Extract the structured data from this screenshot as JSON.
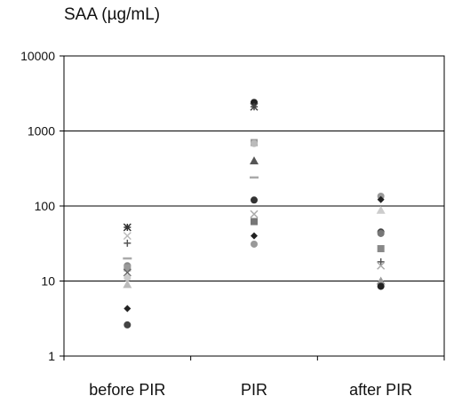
{
  "chart_data": {
    "type": "scatter",
    "title": "SAA (µg/mL)",
    "xlabel": "",
    "ylabel": "",
    "y_scale": "log",
    "ylim": [
      1,
      10000
    ],
    "yticks": [
      1,
      10,
      100,
      1000,
      10000
    ],
    "ytick_labels": [
      "1",
      "10",
      "100",
      "1000",
      "10000"
    ],
    "grid": "horizontal",
    "categories": [
      "before PIR",
      "PIR",
      "after PIR"
    ],
    "points": [
      {
        "category": "before PIR",
        "value": 52,
        "marker": "star",
        "color": "#333333"
      },
      {
        "category": "before PIR",
        "value": 40,
        "marker": "x",
        "color": "#bbbbbb"
      },
      {
        "category": "before PIR",
        "value": 32,
        "marker": "plus",
        "color": "#555555"
      },
      {
        "category": "before PIR",
        "value": 20,
        "marker": "dash",
        "color": "#aaaaaa"
      },
      {
        "category": "before PIR",
        "value": 16,
        "marker": "circle",
        "color": "#888888"
      },
      {
        "category": "before PIR",
        "value": 15,
        "marker": "square",
        "color": "#999999"
      },
      {
        "category": "before PIR",
        "value": 13,
        "marker": "x",
        "color": "#666666"
      },
      {
        "category": "before PIR",
        "value": 11,
        "marker": "circle",
        "color": "#cccccc"
      },
      {
        "category": "before PIR",
        "value": 9,
        "marker": "triangle",
        "color": "#bbbbbb"
      },
      {
        "category": "before PIR",
        "value": 4.3,
        "marker": "diamond",
        "color": "#222222"
      },
      {
        "category": "before PIR",
        "value": 2.6,
        "marker": "circle",
        "color": "#444444"
      },
      {
        "category": "PIR",
        "value": 2400,
        "marker": "circle",
        "color": "#222222"
      },
      {
        "category": "PIR",
        "value": 2100,
        "marker": "star",
        "color": "#444444"
      },
      {
        "category": "PIR",
        "value": 700,
        "marker": "square",
        "color": "#999999"
      },
      {
        "category": "PIR",
        "value": 680,
        "marker": "circle",
        "color": "#bbbbbb"
      },
      {
        "category": "PIR",
        "value": 400,
        "marker": "triangle",
        "color": "#555555"
      },
      {
        "category": "PIR",
        "value": 240,
        "marker": "dash",
        "color": "#aaaaaa"
      },
      {
        "category": "PIR",
        "value": 120,
        "marker": "circle",
        "color": "#333333"
      },
      {
        "category": "PIR",
        "value": 78,
        "marker": "x",
        "color": "#aaaaaa"
      },
      {
        "category": "PIR",
        "value": 62,
        "marker": "square",
        "color": "#777777"
      },
      {
        "category": "PIR",
        "value": 40,
        "marker": "diamond",
        "color": "#222222"
      },
      {
        "category": "PIR",
        "value": 31,
        "marker": "circle",
        "color": "#999999"
      },
      {
        "category": "after PIR",
        "value": 135,
        "marker": "circle",
        "color": "#999999"
      },
      {
        "category": "after PIR",
        "value": 122,
        "marker": "diamond",
        "color": "#222222"
      },
      {
        "category": "after PIR",
        "value": 88,
        "marker": "triangle",
        "color": "#cccccc"
      },
      {
        "category": "after PIR",
        "value": 45,
        "marker": "circle",
        "color": "#444444"
      },
      {
        "category": "after PIR",
        "value": 43,
        "marker": "circle",
        "color": "#777777"
      },
      {
        "category": "after PIR",
        "value": 27,
        "marker": "square",
        "color": "#888888"
      },
      {
        "category": "after PIR",
        "value": 18,
        "marker": "plus",
        "color": "#555555"
      },
      {
        "category": "after PIR",
        "value": 16,
        "marker": "x",
        "color": "#aaaaaa"
      },
      {
        "category": "after PIR",
        "value": 10,
        "marker": "triangle",
        "color": "#999999"
      },
      {
        "category": "after PIR",
        "value": 8.5,
        "marker": "circle",
        "color": "#222222"
      }
    ]
  }
}
